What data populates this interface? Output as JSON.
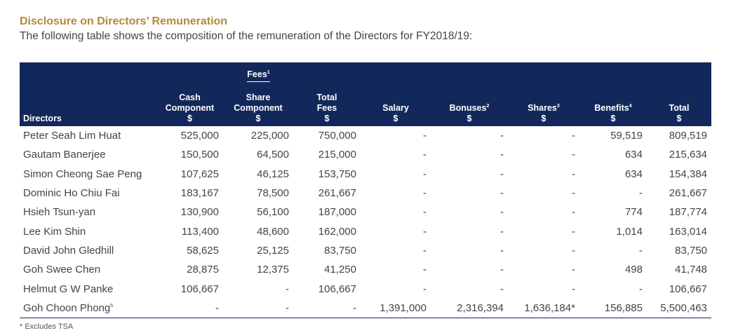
{
  "title": "Disclosure on Directors’ Remuneration",
  "subtitle": "The following table shows the composition of the remuneration of the Directors for FY2018/19:",
  "header": {
    "fees_group": "Fees",
    "fees_group_note": "1",
    "directors": "Directors",
    "cash_line1": "Cash",
    "cash_line2": "Component",
    "share_line1": "Share",
    "share_line2": "Component",
    "total_fees_line1": "Total",
    "total_fees_line2": "Fees",
    "salary": "Salary",
    "bonuses": "Bonuses",
    "bonuses_note": "2",
    "shares": "Shares",
    "shares_note": "3",
    "benefits": "Benefits",
    "benefits_note": "4",
    "total": "Total",
    "currency": "$"
  },
  "rows": [
    {
      "name": "Peter Seah Lim Huat",
      "note": "",
      "cash": "525,000",
      "share": "225,000",
      "total_fees": "750,000",
      "salary": "-",
      "bonuses": "-",
      "shares": "-",
      "benefits": "59,519",
      "total": "809,519"
    },
    {
      "name": "Gautam Banerjee",
      "note": "",
      "cash": "150,500",
      "share": "64,500",
      "total_fees": "215,000",
      "salary": "-",
      "bonuses": "-",
      "shares": "-",
      "benefits": "634",
      "total": "215,634"
    },
    {
      "name": "Simon Cheong Sae Peng",
      "note": "",
      "cash": "107,625",
      "share": "46,125",
      "total_fees": "153,750",
      "salary": "-",
      "bonuses": "-",
      "shares": "-",
      "benefits": "634",
      "total": "154,384"
    },
    {
      "name": "Dominic Ho Chiu Fai",
      "note": "",
      "cash": "183,167",
      "share": "78,500",
      "total_fees": "261,667",
      "salary": "-",
      "bonuses": "-",
      "shares": "-",
      "benefits": "-",
      "total": "261,667"
    },
    {
      "name": "Hsieh Tsun-yan",
      "note": "",
      "cash": "130,900",
      "share": "56,100",
      "total_fees": "187,000",
      "salary": "-",
      "bonuses": "-",
      "shares": "-",
      "benefits": "774",
      "total": "187,774"
    },
    {
      "name": "Lee Kim Shin",
      "note": "",
      "cash": "113,400",
      "share": "48,600",
      "total_fees": "162,000",
      "salary": "-",
      "bonuses": "-",
      "shares": "-",
      "benefits": "1,014",
      "total": "163,014"
    },
    {
      "name": "David John Gledhill",
      "note": "",
      "cash": "58,625",
      "share": "25,125",
      "total_fees": "83,750",
      "salary": "-",
      "bonuses": "-",
      "shares": "-",
      "benefits": "-",
      "total": "83,750"
    },
    {
      "name": "Goh Swee Chen",
      "note": "",
      "cash": "28,875",
      "share": "12,375",
      "total_fees": "41,250",
      "salary": "-",
      "bonuses": "-",
      "shares": "-",
      "benefits": "498",
      "total": "41,748"
    },
    {
      "name": "Helmut G W Panke",
      "note": "",
      "cash": "106,667",
      "share": "-",
      "total_fees": "106,667",
      "salary": "-",
      "bonuses": "-",
      "shares": "-",
      "benefits": "-",
      "total": "106,667"
    },
    {
      "name": "Goh Choon Phong",
      "note": "5",
      "cash": "-",
      "share": "-",
      "total_fees": "-",
      "salary": "1,391,000",
      "bonuses": "2,316,394",
      "shares": "1,636,184*",
      "benefits": "156,885",
      "total": "5,500,463"
    }
  ],
  "footnote": "* Excludes TSA"
}
